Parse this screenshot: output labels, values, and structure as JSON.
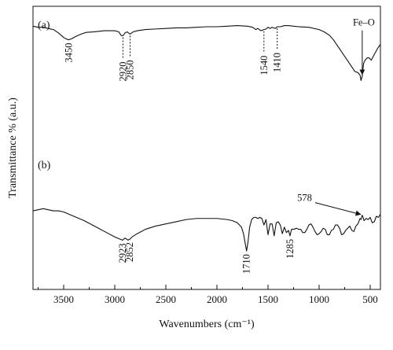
{
  "chart_data": {
    "type": "line",
    "title": "",
    "xlabel": "Wavenumbers (cm⁻¹)",
    "ylabel": "Transmittance % (a.u.)",
    "xlim": [
      3800,
      400
    ],
    "x_reversed": true,
    "y_tick_labels": "none",
    "grid": false,
    "x_ticks": [
      {
        "value": 3500,
        "label": "3500"
      },
      {
        "value": 3000,
        "label": "3000"
      },
      {
        "value": 2500,
        "label": "2500"
      },
      {
        "value": 2000,
        "label": "2000"
      },
      {
        "value": 1500,
        "label": "1500"
      },
      {
        "value": 1000,
        "label": "1000"
      },
      {
        "value": 500,
        "label": "500"
      }
    ],
    "panel_labels": [
      {
        "id": "a",
        "label": "(a)"
      },
      {
        "id": "b",
        "label": "(b)"
      }
    ],
    "series": [
      {
        "id": "a",
        "x": [
          3800,
          3750,
          3700,
          3650,
          3600,
          3550,
          3500,
          3470,
          3450,
          3420,
          3380,
          3330,
          3280,
          3200,
          3100,
          3000,
          2960,
          2940,
          2920,
          2900,
          2880,
          2850,
          2820,
          2780,
          2700,
          2600,
          2500,
          2400,
          2300,
          2200,
          2100,
          2000,
          1900,
          1800,
          1700,
          1650,
          1620,
          1600,
          1570,
          1540,
          1520,
          1500,
          1480,
          1460,
          1430,
          1410,
          1380,
          1340,
          1300,
          1250,
          1200,
          1100,
          1000,
          950,
          900,
          860,
          830,
          800,
          770,
          740,
          710,
          680,
          650,
          620,
          600,
          590,
          578,
          565,
          550,
          530,
          510,
          490,
          460,
          430,
          400
        ],
        "y": [
          88,
          87,
          87,
          86,
          85,
          82,
          78,
          76.5,
          76,
          77,
          79,
          81,
          82.5,
          83,
          84,
          84,
          83,
          80,
          79.5,
          82,
          83,
          81,
          83,
          84,
          85,
          85.5,
          86,
          86.5,
          86.5,
          87,
          87.5,
          87.5,
          88,
          88.5,
          88,
          87,
          85,
          86,
          84,
          85,
          85.5,
          87,
          86,
          87,
          86,
          87.5,
          87.5,
          88.5,
          88.5,
          88,
          87.5,
          87,
          85,
          83,
          80,
          76,
          72,
          68,
          64,
          60,
          56,
          52,
          48,
          47,
          45,
          40,
          44,
          55,
          58,
          60,
          60,
          58,
          63,
          68,
          72
        ]
      },
      {
        "id": "b",
        "x": [
          3800,
          3750,
          3700,
          3650,
          3600,
          3550,
          3500,
          3450,
          3400,
          3300,
          3200,
          3100,
          3000,
          2950,
          2923,
          2900,
          2870,
          2852,
          2830,
          2780,
          2700,
          2600,
          2500,
          2400,
          2300,
          2200,
          2100,
          2000,
          1900,
          1850,
          1800,
          1760,
          1740,
          1725,
          1710,
          1695,
          1680,
          1660,
          1640,
          1620,
          1600,
          1580,
          1560,
          1540,
          1520,
          1500,
          1480,
          1460,
          1440,
          1420,
          1400,
          1380,
          1360,
          1340,
          1320,
          1300,
          1285,
          1270,
          1250,
          1220,
          1200,
          1180,
          1160,
          1140,
          1120,
          1100,
          1080,
          1060,
          1040,
          1020,
          1000,
          980,
          960,
          940,
          920,
          900,
          880,
          860,
          840,
          820,
          800,
          780,
          760,
          740,
          720,
          700,
          680,
          660,
          640,
          620,
          600,
          590,
          578,
          570,
          560,
          540,
          520,
          500,
          480,
          460,
          440,
          420,
          400
        ],
        "y": [
          55,
          56,
          57,
          56,
          55,
          55,
          54,
          52,
          50,
          46,
          41,
          36,
          31,
          29,
          28,
          30,
          28,
          29,
          31,
          34,
          38,
          41,
          43,
          45,
          47,
          48,
          48,
          48,
          47,
          46,
          44,
          40,
          34,
          26,
          18,
          27,
          40,
          47,
          49,
          49,
          48,
          49,
          48,
          42,
          47,
          33,
          43,
          43,
          32,
          44,
          45,
          42,
          34,
          40,
          35,
          37,
          32,
          38,
          38,
          39,
          38,
          38,
          35,
          35,
          38,
          42,
          43,
          40,
          36,
          33,
          34,
          36,
          39,
          38,
          33,
          33,
          37,
          38,
          42,
          42,
          39,
          33,
          34,
          37,
          39,
          41,
          37,
          36,
          41,
          43,
          48,
          47,
          51,
          49,
          46,
          48,
          47,
          49,
          44,
          45,
          50,
          49,
          52
        ]
      }
    ],
    "annotations": [
      {
        "label": "3450",
        "series": "a",
        "x": 3450,
        "style": "below"
      },
      {
        "label": "2920",
        "series": "a",
        "x": 2920,
        "style": "dotted"
      },
      {
        "label": "2850",
        "series": "a",
        "x": 2850,
        "style": "dotted"
      },
      {
        "label": "1540",
        "series": "a",
        "x": 1540,
        "style": "dotted"
      },
      {
        "label": "1410",
        "series": "a",
        "x": 1410,
        "style": "dotted"
      },
      {
        "label": "Fe–O",
        "series": "a",
        "x": 578,
        "style": "arrow"
      },
      {
        "label": "578",
        "series": "b",
        "x": 578,
        "style": "arrow"
      },
      {
        "label": "2923",
        "series": "b",
        "x": 2923,
        "style": "below"
      },
      {
        "label": "2852",
        "series": "b",
        "x": 2852,
        "style": "below"
      },
      {
        "label": "1710",
        "series": "b",
        "x": 1710,
        "style": "below"
      },
      {
        "label": "1285",
        "series": "b",
        "x": 1285,
        "style": "below"
      }
    ]
  }
}
